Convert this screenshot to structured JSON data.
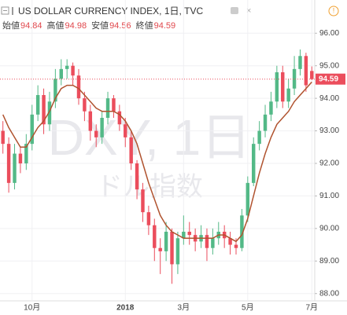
{
  "chart_data": {
    "type": "candlestick",
    "title": "US DOLLAR CURRENCY INDEX, 1日, TVC",
    "ohlc_header": [
      {
        "label": "始値",
        "value": 94.84
      },
      {
        "label": "高値",
        "value": 94.98
      },
      {
        "label": "安値",
        "value": 94.56
      },
      {
        "label": "終値",
        "value": 94.59
      }
    ],
    "watermark": "DXY, 1日",
    "watermark_sub": "ドル指数",
    "categories": [
      null,
      null,
      null,
      null,
      null,
      "10月",
      null,
      null,
      null,
      null,
      null,
      null,
      null,
      null,
      null,
      null,
      null,
      null,
      null,
      null,
      null,
      "2018",
      null,
      null,
      null,
      null,
      null,
      null,
      null,
      null,
      null,
      "3月",
      null,
      null,
      null,
      null,
      null,
      null,
      null,
      null,
      null,
      null,
      "5月",
      null,
      null,
      null,
      null,
      null,
      null,
      null,
      null,
      null,
      null,
      "7月"
    ],
    "open": [
      93.0,
      92.6,
      91.4,
      92.3,
      92.0,
      92.6,
      93.5,
      94.1,
      93.2,
      93.9,
      94.6,
      94.9,
      95.0,
      94.7,
      94.0,
      93.6,
      93.0,
      92.8,
      93.4,
      94.0,
      93.6,
      93.2,
      92.8,
      92.0,
      91.2,
      90.5,
      90.1,
      89.4,
      89.3,
      89.9,
      88.9,
      89.7,
      89.9,
      89.8,
      89.6,
      89.8,
      89.4,
      89.7,
      89.9,
      89.7,
      89.5,
      89.4,
      90.4,
      91.4,
      92.6,
      93.0,
      93.5,
      93.9,
      94.8,
      93.9,
      94.3,
      94.9,
      95.3,
      94.84
    ],
    "high": [
      93.3,
      92.8,
      92.6,
      92.5,
      92.9,
      93.8,
      94.4,
      94.3,
      94.2,
      94.9,
      95.2,
      95.2,
      95.1,
      94.9,
      94.2,
      93.8,
      93.2,
      93.6,
      94.2,
      94.1,
      93.8,
      93.4,
      93.0,
      92.1,
      91.4,
      90.7,
      90.3,
      89.7,
      90.2,
      90.0,
      89.9,
      90.4,
      90.2,
      90.0,
      90.1,
      90.0,
      90.0,
      90.2,
      90.1,
      89.9,
      89.7,
      90.6,
      91.6,
      92.8,
      93.3,
      93.8,
      94.2,
      95.0,
      95.0,
      94.6,
      95.3,
      95.5,
      95.4,
      94.98
    ],
    "low": [
      92.3,
      91.1,
      91.2,
      91.7,
      91.8,
      92.4,
      93.3,
      92.9,
      93.0,
      93.7,
      94.4,
      94.6,
      94.4,
      93.8,
      93.3,
      92.7,
      92.5,
      92.6,
      93.2,
      93.4,
      93.0,
      92.5,
      91.8,
      90.9,
      90.2,
      89.8,
      89.0,
      88.6,
      89.0,
      88.3,
      88.6,
      89.5,
      89.5,
      89.3,
      89.4,
      89.0,
      89.2,
      89.5,
      89.4,
      89.2,
      89.2,
      89.3,
      90.2,
      91.3,
      92.4,
      92.8,
      93.3,
      93.7,
      93.7,
      93.7,
      94.1,
      94.7,
      94.2,
      94.56
    ],
    "close": [
      92.6,
      91.4,
      92.3,
      92.0,
      92.6,
      93.5,
      94.1,
      93.2,
      93.9,
      94.6,
      94.9,
      95.0,
      94.7,
      94.0,
      93.6,
      93.0,
      92.8,
      93.4,
      94.0,
      93.6,
      93.2,
      92.8,
      92.0,
      91.2,
      90.5,
      90.1,
      89.4,
      89.3,
      89.9,
      88.9,
      89.7,
      89.9,
      89.8,
      89.6,
      89.8,
      89.4,
      89.7,
      89.9,
      89.7,
      89.5,
      89.4,
      90.4,
      91.4,
      92.6,
      93.0,
      93.5,
      93.9,
      94.8,
      93.9,
      94.3,
      94.9,
      95.3,
      94.4,
      94.59
    ],
    "up_color": "#53b987",
    "down_color": "#eb4d5c",
    "ma": {
      "color": "#b0532f",
      "values": [
        93.5,
        93.1,
        92.8,
        92.5,
        92.5,
        92.8,
        93.1,
        93.3,
        93.6,
        94.0,
        94.3,
        94.4,
        94.4,
        94.3,
        94.1,
        93.9,
        93.7,
        93.6,
        93.6,
        93.6,
        93.5,
        93.3,
        93.0,
        92.6,
        92.0,
        91.4,
        90.9,
        90.4,
        90.1,
        89.9,
        89.8,
        89.7,
        89.7,
        89.7,
        89.7,
        89.7,
        89.7,
        89.8,
        89.8,
        89.7,
        89.6,
        89.8,
        90.3,
        91.0,
        91.7,
        92.3,
        92.8,
        93.2,
        93.4,
        93.6,
        93.9,
        94.1,
        94.3,
        94.5
      ]
    },
    "ylim": [
      87.8,
      96.9
    ],
    "yticks": [
      {
        "value": 88,
        "label": "88.00"
      },
      {
        "value": 89,
        "label": "89.00"
      },
      {
        "value": 90,
        "label": "90.00"
      },
      {
        "value": 91,
        "label": "91.00"
      },
      {
        "value": 92,
        "label": "92.00"
      },
      {
        "value": 93,
        "label": "93.00"
      },
      {
        "value": 94,
        "label": "94.00"
      },
      {
        "value": 95,
        "label": "95.00"
      },
      {
        "value": 96,
        "label": "96.00"
      }
    ],
    "grid": true
  }
}
